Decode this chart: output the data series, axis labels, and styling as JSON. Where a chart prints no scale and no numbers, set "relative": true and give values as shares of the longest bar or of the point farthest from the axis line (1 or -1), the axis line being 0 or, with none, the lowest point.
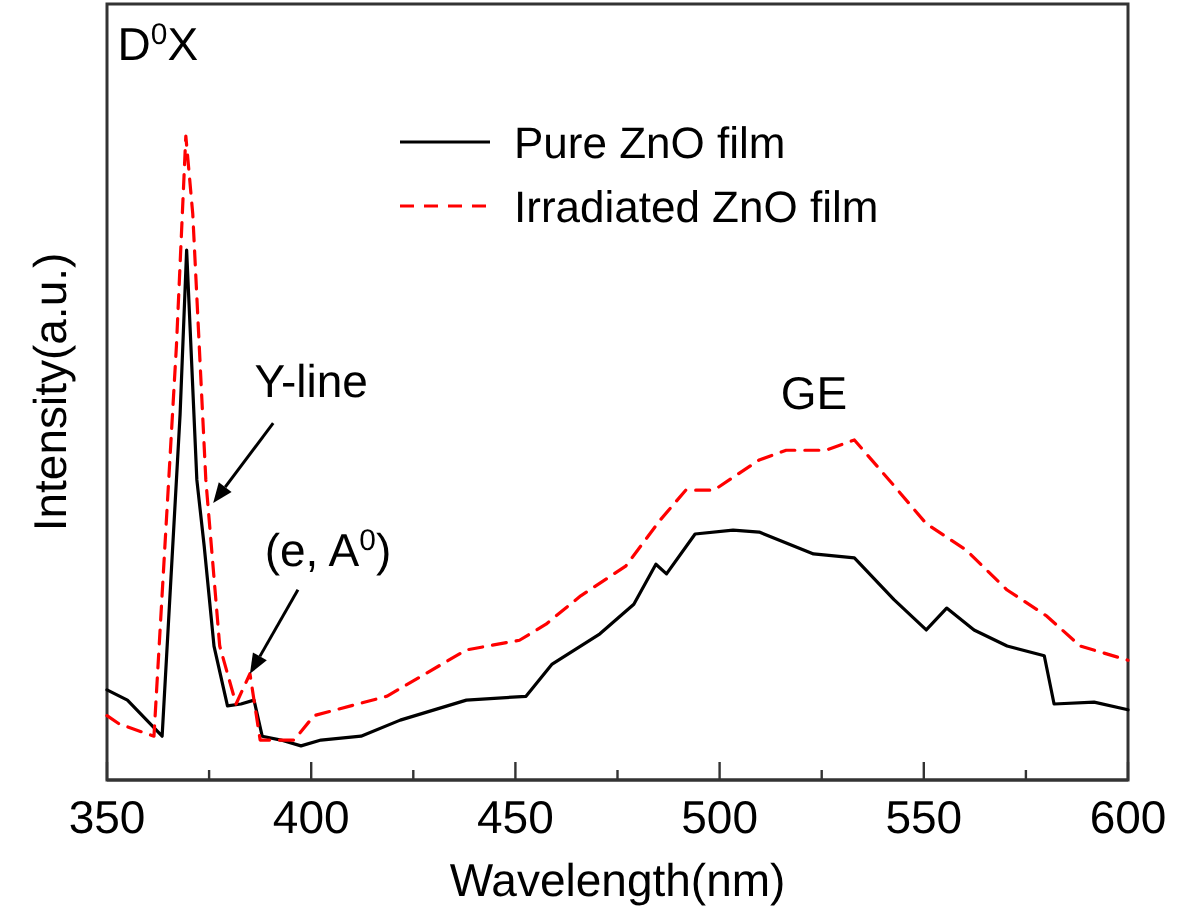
{
  "chart_data": {
    "type": "line",
    "xlabel": "Wavelength(nm)",
    "ylabel": "Intensity(a.u.)",
    "relative": true,
    "xlim": [
      350,
      600
    ],
    "xticks": [
      350,
      {
        "value": 375,
        "label": null
      },
      400,
      {
        "value": 425,
        "label": null
      },
      450,
      {
        "value": 475,
        "label": null
      },
      500,
      {
        "value": 525,
        "label": null
      },
      550,
      {
        "value": 575,
        "label": null
      },
      600
    ],
    "legend": "top right",
    "grid": false,
    "annotations": [
      {
        "text": "D$^{0}$X",
        "x": 369.3,
        "y": 1
      },
      {
        "text": "Y-line",
        "x": 376,
        "y": 0.43
      },
      {
        "text": "(e, A$^{0}$)",
        "x": 385,
        "y": 0.165
      },
      {
        "text": "GE",
        "x": 527,
        "y": 0.53
      }
    ],
    "series": [
      {
        "name": "Pure ZnO film",
        "color": "#000000",
        "line_style": "solid",
        "x": [
          350,
          355,
          363.5,
          367.9,
          369.5,
          372,
          373.8,
          376.2,
          379.5,
          382.8,
          386,
          388,
          392.6,
          397.5,
          402.4,
          412.2,
          421.8,
          438,
          452.6,
          459,
          470.7,
          479,
          484.4,
          487,
          494,
          503.3,
          509.7,
          523,
          533,
          542.7,
          550.6,
          555.6,
          562.3,
          570.4,
          579.5,
          581.9,
          591.7,
          600
        ],
        "values": [
          0.14,
          0.124,
          0.068,
          0.568,
          0.823,
          0.466,
          0.363,
          0.208,
          0.115,
          0.118,
          0.124,
          0.068,
          0.062,
          0.053,
          0.062,
          0.068,
          0.093,
          0.124,
          0.13,
          0.18,
          0.227,
          0.273,
          0.335,
          0.32,
          0.382,
          0.388,
          0.385,
          0.351,
          0.345,
          0.28,
          0.233,
          0.267,
          0.233,
          0.208,
          0.193,
          0.118,
          0.121,
          0.109
        ]
      },
      {
        "name": "Irradiated ZnO film",
        "color": "#ff0000",
        "line_style": "dashed",
        "x": [
          350,
          353,
          361.5,
          367,
          369.3,
          371,
          374.2,
          377.6,
          381.6,
          385,
          387.5,
          395.8,
          400.7,
          418.5,
          438,
          451,
          457.5,
          466,
          477,
          485.5,
          491.7,
          498.6,
          509.7,
          516.3,
          526,
          533,
          542.7,
          550.6,
          560.4,
          570.4,
          580,
          588.3,
          600
        ],
        "values": [
          0.1,
          0.087,
          0.068,
          0.674,
          1,
          0.879,
          0.466,
          0.208,
          0.118,
          0.165,
          0.062,
          0.062,
          0.1,
          0.13,
          0.202,
          0.217,
          0.242,
          0.286,
          0.332,
          0.404,
          0.45,
          0.45,
          0.497,
          0.512,
          0.512,
          0.528,
          0.457,
          0.398,
          0.357,
          0.295,
          0.255,
          0.208,
          0.186
        ]
      }
    ]
  }
}
